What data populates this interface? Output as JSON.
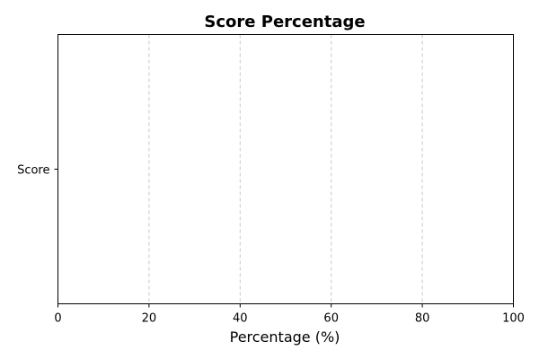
{
  "chart_data": {
    "type": "bar",
    "orientation": "horizontal",
    "title": "Score Percentage",
    "xlabel": "Percentage (%)",
    "ylabel": "",
    "categories": [
      "Score"
    ],
    "values": [
      0
    ],
    "xlim": [
      0,
      100
    ],
    "xticks": [
      0,
      20,
      40,
      60,
      80,
      100
    ],
    "grid": "vertical dashed",
    "bar_color": "#4c72b0",
    "grid_color": "#c8c8c8"
  }
}
